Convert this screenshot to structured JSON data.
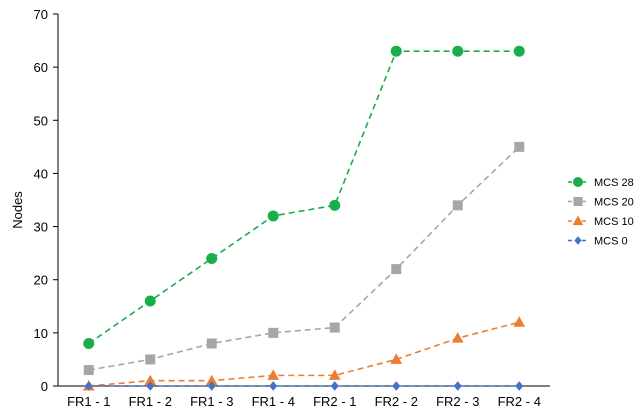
{
  "chart_data": {
    "type": "line",
    "title": "",
    "xlabel": "",
    "ylabel": "Nodes",
    "ylim": [
      0,
      70
    ],
    "yticks": [
      0,
      10,
      20,
      30,
      40,
      50,
      60,
      70
    ],
    "categories": [
      "FR1 - 1",
      "FR1 - 2",
      "FR1 - 3",
      "FR1 - 4",
      "FR2 - 1",
      "FR2 - 2",
      "FR2 - 3",
      "FR2 - 4"
    ],
    "grid": false,
    "legend_position": "right",
    "series": [
      {
        "name": "MCS 28",
        "color": "#1aae4a",
        "marker": "circle",
        "line": "dashed",
        "values": [
          8,
          16,
          24,
          32,
          34,
          63,
          63,
          63
        ]
      },
      {
        "name": "MCS 20",
        "color": "#a6a6a6",
        "marker": "square",
        "line": "dashed",
        "values": [
          3,
          5,
          8,
          10,
          11,
          22,
          34,
          45
        ]
      },
      {
        "name": "MCS 10",
        "color": "#ed7d31",
        "marker": "triangle",
        "line": "dashed",
        "values": [
          0,
          1,
          1,
          2,
          2,
          5,
          9,
          12
        ]
      },
      {
        "name": "MCS 0",
        "color": "#4472c4",
        "marker": "diamond",
        "line": "dashed",
        "values": [
          0,
          0,
          0,
          0,
          0,
          0,
          0,
          0
        ]
      }
    ]
  }
}
